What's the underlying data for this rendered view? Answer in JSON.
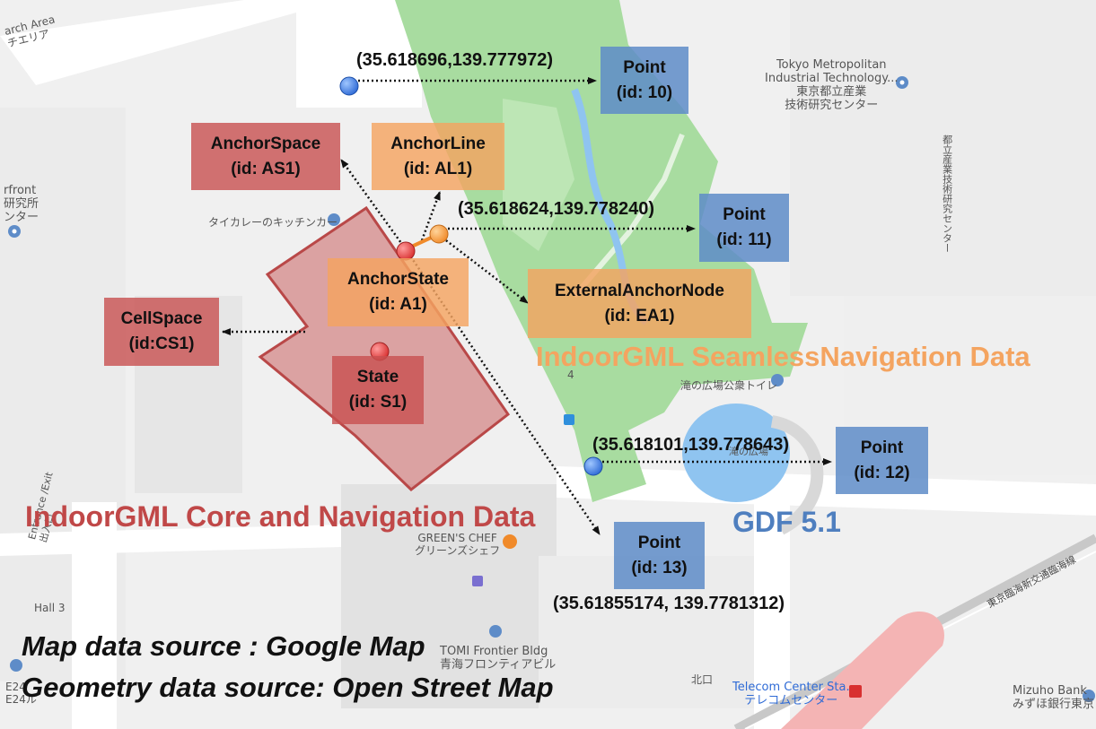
{
  "nodes": {
    "anchor_space": {
      "title": "AnchorSpace",
      "id": "(id: AS1)"
    },
    "anchor_line": {
      "title": "AnchorLine",
      "id": "(id: AL1)"
    },
    "anchor_state": {
      "title": "AnchorState",
      "id": "(id: A1)"
    },
    "cell_space": {
      "title": "CellSpace",
      "id": "(id:CS1)"
    },
    "state": {
      "title": "State",
      "id": "(id: S1)"
    },
    "external_anchor_node": {
      "title": "ExternalAnchorNode",
      "id": "(id: EA1)"
    },
    "point_10": {
      "title": "Point",
      "id": "(id: 10)"
    },
    "point_11": {
      "title": "Point",
      "id": "(id: 11)"
    },
    "point_12": {
      "title": "Point",
      "id": "(id: 12)"
    },
    "point_13": {
      "title": "Point",
      "id": "(id: 13)"
    }
  },
  "coordinates": {
    "point_10": "(35.618696,139.777972)",
    "point_11": "(35.618624,139.778240)",
    "point_12": "(35.618101,139.778643)",
    "point_13": "(35.61855174, 139.7781312)"
  },
  "layers": {
    "core": "IndoorGML Core and Navigation Data",
    "seamless": "IndoorGML SeamlessNavigation Data",
    "gdf": "GDF 5.1"
  },
  "sources": {
    "map": "Map data source : Google Map",
    "geometry": "Geometry data source: Open Street Map"
  },
  "map_labels": {
    "search_area": "arch Area",
    "search_area_jp": "チエリア",
    "tokyo_metro_1": "Tokyo Metropolitan",
    "tokyo_metro_2": "Industrial Technology...",
    "tokyo_metro_jp1": "東京都立産業",
    "tokyo_metro_jp2": "技術研究センター",
    "front": "rfront",
    "front_jp1": "研究所",
    "front_jp2": "ンター",
    "tai_curry": "タイカレーのキッチンカー",
    "greens_chef": "GREEN'S CHEF",
    "greens_chef_jp": "グリーンズシェフ",
    "tomi_frontier": "TOMI Frontier Bldg",
    "tomi_frontier_jp": "青海フロンティアビル",
    "telecom_center": "Telecom Center Sta.",
    "telecom_center_jp": "テレコムセンター",
    "mizuho": "Mizuho Bank",
    "mizuho_jp": "みずほ銀行東京",
    "hall3": "Hall 3",
    "entrance": "Entrance /Exit",
    "entrance_jp": "出入口",
    "e24": "E24",
    "e24_jp": "E24ル",
    "north_exit": "北口",
    "park_toilet": "滝の広場公衆トイレ",
    "plaza": "滝の広場",
    "number_4": "4",
    "railway": "東京臨海新交通臨海線",
    "vertical_label": "都立産業技術研究センター"
  },
  "colors": {
    "red": "#c05050",
    "orange": "#f4a460",
    "blue": "#5e8cc8",
    "park_green": "#a8dca0",
    "water": "#8fc4f0"
  },
  "icons": [
    "location-pin-icon",
    "restaurant-icon",
    "bicycle-icon",
    "train-station-icon",
    "bus-stop-icon"
  ]
}
